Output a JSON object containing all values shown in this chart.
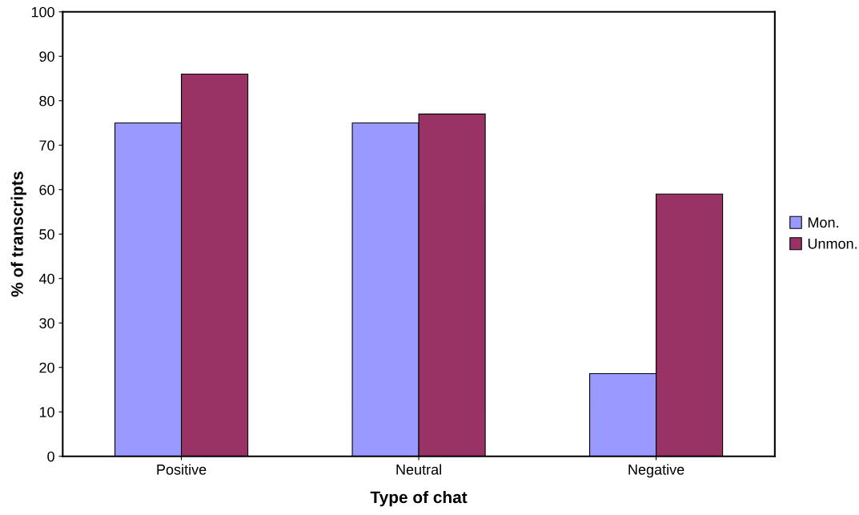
{
  "chart_data": {
    "type": "bar",
    "xlabel": "Type of chat",
    "ylabel": "% of transcripts",
    "categories": [
      "Positive",
      "Neutral",
      "Negative"
    ],
    "series": [
      {
        "name": "Mon.",
        "color": "#9999ff",
        "values": [
          75,
          75,
          18.6
        ]
      },
      {
        "name": "Unmon.",
        "color": "#993366",
        "values": [
          86,
          77,
          59
        ]
      }
    ],
    "ylim": [
      0,
      100
    ],
    "yticks": [
      0,
      10,
      20,
      30,
      40,
      50,
      60,
      70,
      80,
      90,
      100
    ],
    "grid": false,
    "legend": "right"
  }
}
